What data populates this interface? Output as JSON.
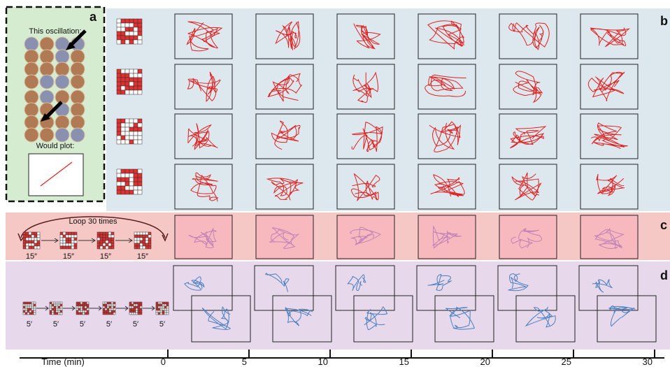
{
  "panel_a": {
    "label": "a",
    "caption_top": "This oscillation:",
    "caption_bottom": "Would plot:"
  },
  "panel_b": {
    "label": "b"
  },
  "panel_c": {
    "label": "c",
    "loop_label": "Loop 30 times",
    "step_labels": [
      "15″",
      "15″",
      "15″",
      "15″"
    ]
  },
  "panel_d": {
    "label": "d",
    "step_labels": [
      "5′",
      "5′",
      "5′",
      "5′",
      "5′",
      "5′"
    ]
  },
  "time_axis": {
    "label": "Time (min)",
    "ticks": [
      0,
      5,
      10,
      15,
      20,
      25,
      30
    ]
  }
}
